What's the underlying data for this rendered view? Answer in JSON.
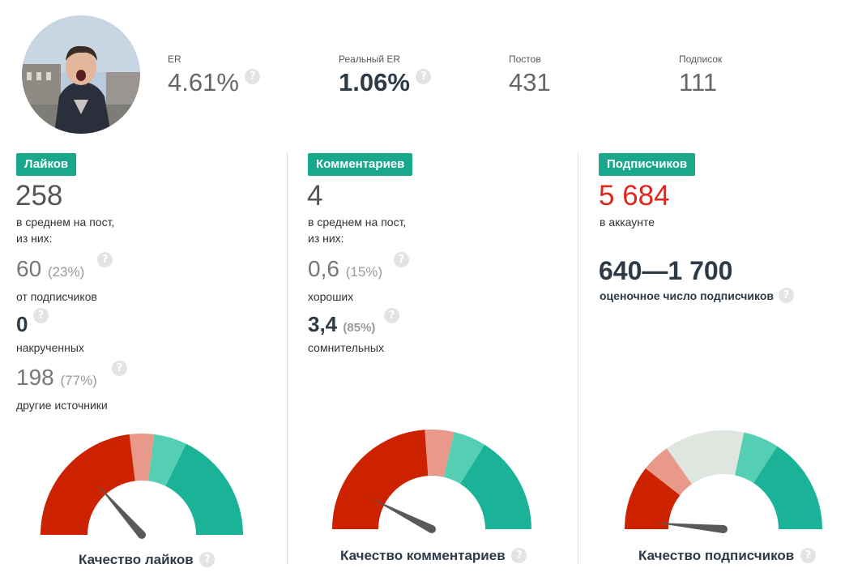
{
  "profile": {
    "avatar": "avatar-photo"
  },
  "stats": [
    {
      "label": "ER",
      "value": "4.61%",
      "strong": false,
      "help": true
    },
    {
      "label": "Реальный ER",
      "value": "1.06%",
      "strong": true,
      "help": true
    },
    {
      "label": "Постов",
      "value": "431",
      "strong": false,
      "help": false
    },
    {
      "label": "Подписок",
      "value": "111",
      "strong": false,
      "help": false
    }
  ],
  "help_glyph": "?",
  "likes": {
    "badge": "Лайков",
    "value": "258",
    "desc1": "в среднем на пост,",
    "desc2": "из них:",
    "subs_value": "60",
    "subs_pct": "(23%)",
    "subs_label": "от подписчиков",
    "bots_value": "0",
    "bots_label": "накрученных",
    "other_value": "198",
    "other_pct": "(77%)",
    "other_label": "другие источники",
    "gauge_title": "Качество лайков",
    "gauge_level": 0.27
  },
  "comments": {
    "badge": "Комментариев",
    "value": "4",
    "desc1": "в среднем на пост,",
    "desc2": "из них:",
    "good_value": "0,6",
    "good_pct": "(15%)",
    "good_label": "хороших",
    "bad_value": "3,4",
    "bad_pct": "(85%)",
    "bad_label": "сомнительных",
    "gauge_title": "Качество комментариев",
    "gauge_level": 0.15
  },
  "followers": {
    "badge": "Подписчиков",
    "value": "5 684",
    "desc": "в аккаунте",
    "estimate": "640—1 700",
    "estimate_label": "оценочное число подписчиков",
    "gauge_title": "Качество подписчиков",
    "gauge_level": 0.03
  },
  "colors": {
    "accent": "#1aa88c",
    "red": "#cc2200",
    "pink": "#e8998a",
    "mint": "#55cfb4",
    "teal": "#1ab398",
    "pale": "#dfe6df",
    "needle": "#595959"
  }
}
